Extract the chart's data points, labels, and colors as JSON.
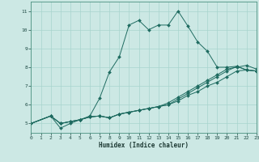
{
  "xlabel": "Humidex (Indice chaleur)",
  "bg_color": "#cce8e4",
  "line_color": "#1e6b60",
  "grid_color": "#a8d4ce",
  "spine_color": "#4a9080",
  "xlim": [
    0,
    23
  ],
  "ylim": [
    4.5,
    11.5
  ],
  "xticks": [
    0,
    1,
    2,
    3,
    4,
    5,
    6,
    7,
    8,
    9,
    10,
    11,
    12,
    13,
    14,
    15,
    16,
    17,
    18,
    19,
    20,
    21,
    22,
    23
  ],
  "yticks": [
    5,
    6,
    7,
    8,
    9,
    10,
    11
  ],
  "series": [
    {
      "x": [
        0,
        2,
        3,
        4,
        5,
        6,
        7,
        8,
        9,
        10,
        11,
        12,
        13,
        14,
        15,
        16,
        17,
        18,
        19,
        20,
        21,
        22,
        23
      ],
      "y": [
        5.0,
        5.4,
        5.0,
        5.1,
        5.2,
        5.4,
        6.35,
        7.75,
        8.55,
        10.25,
        10.5,
        10.0,
        10.25,
        10.25,
        11.0,
        10.2,
        9.35,
        8.85,
        8.0,
        8.0,
        8.05,
        7.85,
        7.8
      ]
    },
    {
      "x": [
        0,
        2,
        3,
        4,
        5,
        6,
        7,
        8,
        9,
        10,
        11,
        12,
        13,
        14,
        15,
        16,
        17,
        18,
        19,
        20,
        21,
        22,
        23
      ],
      "y": [
        5.0,
        5.4,
        5.0,
        5.1,
        5.2,
        5.35,
        5.4,
        5.3,
        5.5,
        5.6,
        5.7,
        5.8,
        5.9,
        6.0,
        6.2,
        6.5,
        6.7,
        7.0,
        7.2,
        7.5,
        7.8,
        7.85,
        7.8
      ]
    },
    {
      "x": [
        0,
        2,
        3,
        4,
        5,
        6,
        7,
        8,
        9,
        10,
        11,
        12,
        13,
        14,
        15,
        16,
        17,
        18,
        19,
        20,
        21,
        22,
        23
      ],
      "y": [
        5.0,
        5.4,
        5.0,
        5.1,
        5.2,
        5.35,
        5.4,
        5.3,
        5.5,
        5.6,
        5.7,
        5.8,
        5.9,
        6.1,
        6.4,
        6.7,
        7.0,
        7.3,
        7.6,
        7.9,
        8.0,
        8.1,
        7.9
      ]
    },
    {
      "x": [
        0,
        2,
        3,
        4,
        5,
        6,
        7,
        8,
        9,
        10,
        11,
        12,
        13,
        14,
        15,
        16,
        17,
        18,
        19,
        20,
        21,
        22,
        23
      ],
      "y": [
        5.0,
        5.4,
        4.75,
        5.0,
        5.2,
        5.35,
        5.4,
        5.3,
        5.5,
        5.6,
        5.7,
        5.8,
        5.9,
        6.0,
        6.3,
        6.6,
        6.9,
        7.2,
        7.5,
        7.8,
        8.05,
        7.85,
        7.8
      ]
    }
  ]
}
